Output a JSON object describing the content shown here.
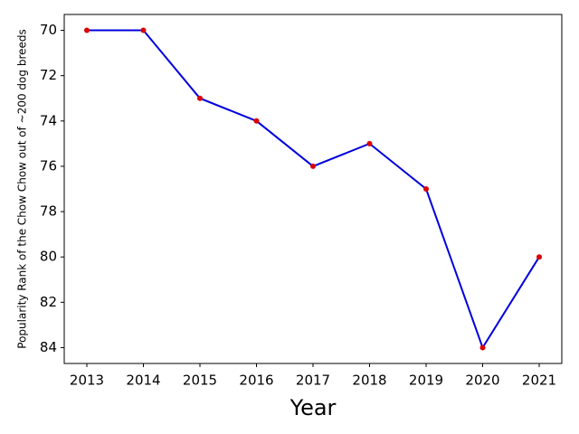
{
  "chart_data": {
    "type": "line",
    "xlabel": "Year",
    "ylabel": "Popularity Rank of the Chow Chow out of ~200 dog breeds",
    "x": [
      2013,
      2014,
      2015,
      2016,
      2017,
      2018,
      2019,
      2020,
      2021
    ],
    "values": [
      70,
      70,
      73,
      74,
      76,
      75,
      77,
      84,
      80
    ],
    "color": "#0000dd",
    "marker_color": "#dd0000",
    "xlim": [
      2012.6,
      2021.4
    ],
    "xticks": [
      2013,
      2014,
      2015,
      2016,
      2017,
      2018,
      2019,
      2020,
      2021
    ],
    "ylim": [
      69.3,
      84.7
    ],
    "yticks": [
      70,
      72,
      74,
      76,
      78,
      80,
      82,
      84
    ],
    "y_inverted": true,
    "grid": false
  }
}
